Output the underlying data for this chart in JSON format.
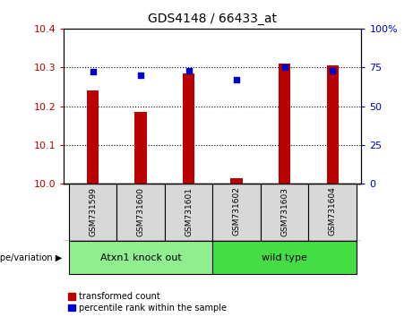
{
  "title": "GDS4148 / 66433_at",
  "samples": [
    "GSM731599",
    "GSM731600",
    "GSM731601",
    "GSM731602",
    "GSM731603",
    "GSM731604"
  ],
  "red_values": [
    10.24,
    10.185,
    10.285,
    10.015,
    10.31,
    10.305
  ],
  "blue_values": [
    72,
    70,
    73,
    67,
    75,
    73
  ],
  "ylim_left": [
    10.0,
    10.4
  ],
  "ylim_right": [
    0,
    100
  ],
  "yticks_left": [
    10.0,
    10.1,
    10.2,
    10.3,
    10.4
  ],
  "yticks_right": [
    0,
    25,
    50,
    75,
    100
  ],
  "ytick_labels_right": [
    "0",
    "25",
    "50",
    "75",
    "100%"
  ],
  "groups": [
    {
      "label": "Atxn1 knock out",
      "indices": [
        0,
        1,
        2
      ],
      "color": "#90EE90"
    },
    {
      "label": "wild type",
      "indices": [
        3,
        4,
        5
      ],
      "color": "#44DD44"
    }
  ],
  "group_label": "genotype/variation",
  "legend_red": "transformed count",
  "legend_blue": "percentile rank within the sample",
  "red_color": "#BB0000",
  "blue_color": "#0000CC",
  "bar_width": 0.25,
  "grid_color": "black",
  "sample_box_color": "#d8d8d8",
  "plot_bg": "white"
}
